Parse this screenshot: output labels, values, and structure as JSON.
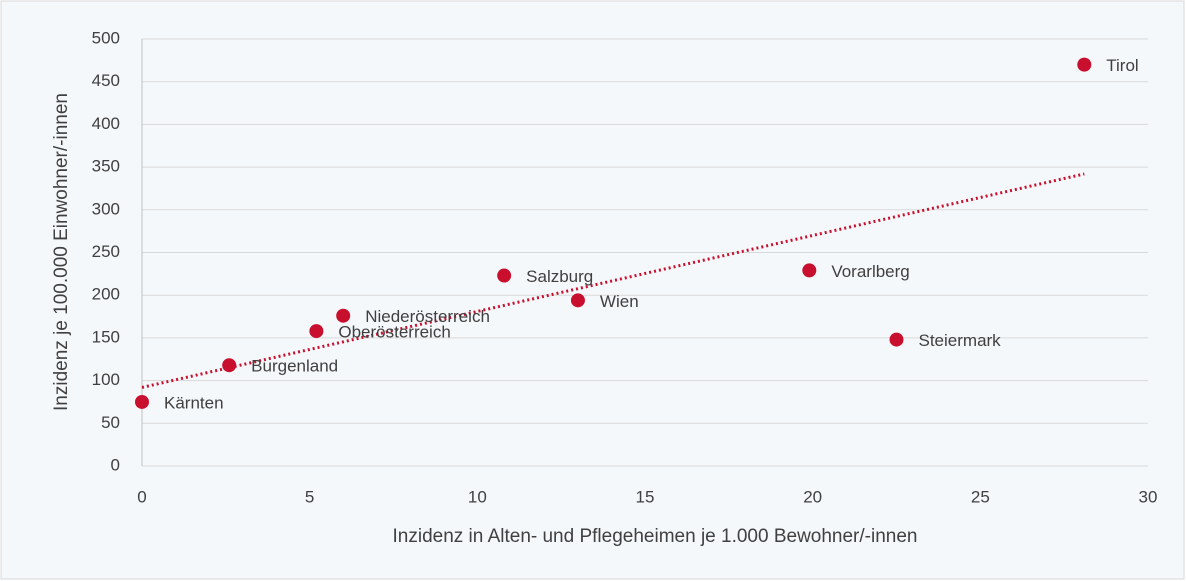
{
  "chart_data": {
    "type": "scatter",
    "x_label": "Inzidenz in Alten- und Pflegeheimen je 1.000 Bewohner/-innen",
    "y_label": "Inzidenz je 100.000 Einwohner/-innen",
    "series": [
      {
        "color": "#c8102e",
        "labels": [
          "Kärnten",
          "Burgenland",
          "Oberösterreich",
          "Niederösterreich",
          "Salzburg",
          "Wien",
          "Vorarlberg",
          "Steiermark",
          "Tirol"
        ],
        "x": [
          0,
          2.6,
          5.2,
          6,
          10.8,
          13,
          19.9,
          22.5,
          28.1
        ],
        "values": [
          75,
          118,
          158,
          176,
          223,
          194,
          229,
          148,
          470
        ]
      }
    ],
    "trendline": {
      "color": "#c8102e",
      "x": [
        0,
        28.1
      ],
      "values": [
        92,
        342
      ]
    },
    "xlim": [
      0,
      30
    ],
    "xticks": [
      0,
      5,
      10,
      15,
      20,
      25,
      30
    ],
    "ylim": [
      0,
      500
    ],
    "yticks": [
      0,
      50,
      100,
      150,
      200,
      250,
      300,
      350,
      400,
      450,
      500
    ],
    "grid": true
  }
}
